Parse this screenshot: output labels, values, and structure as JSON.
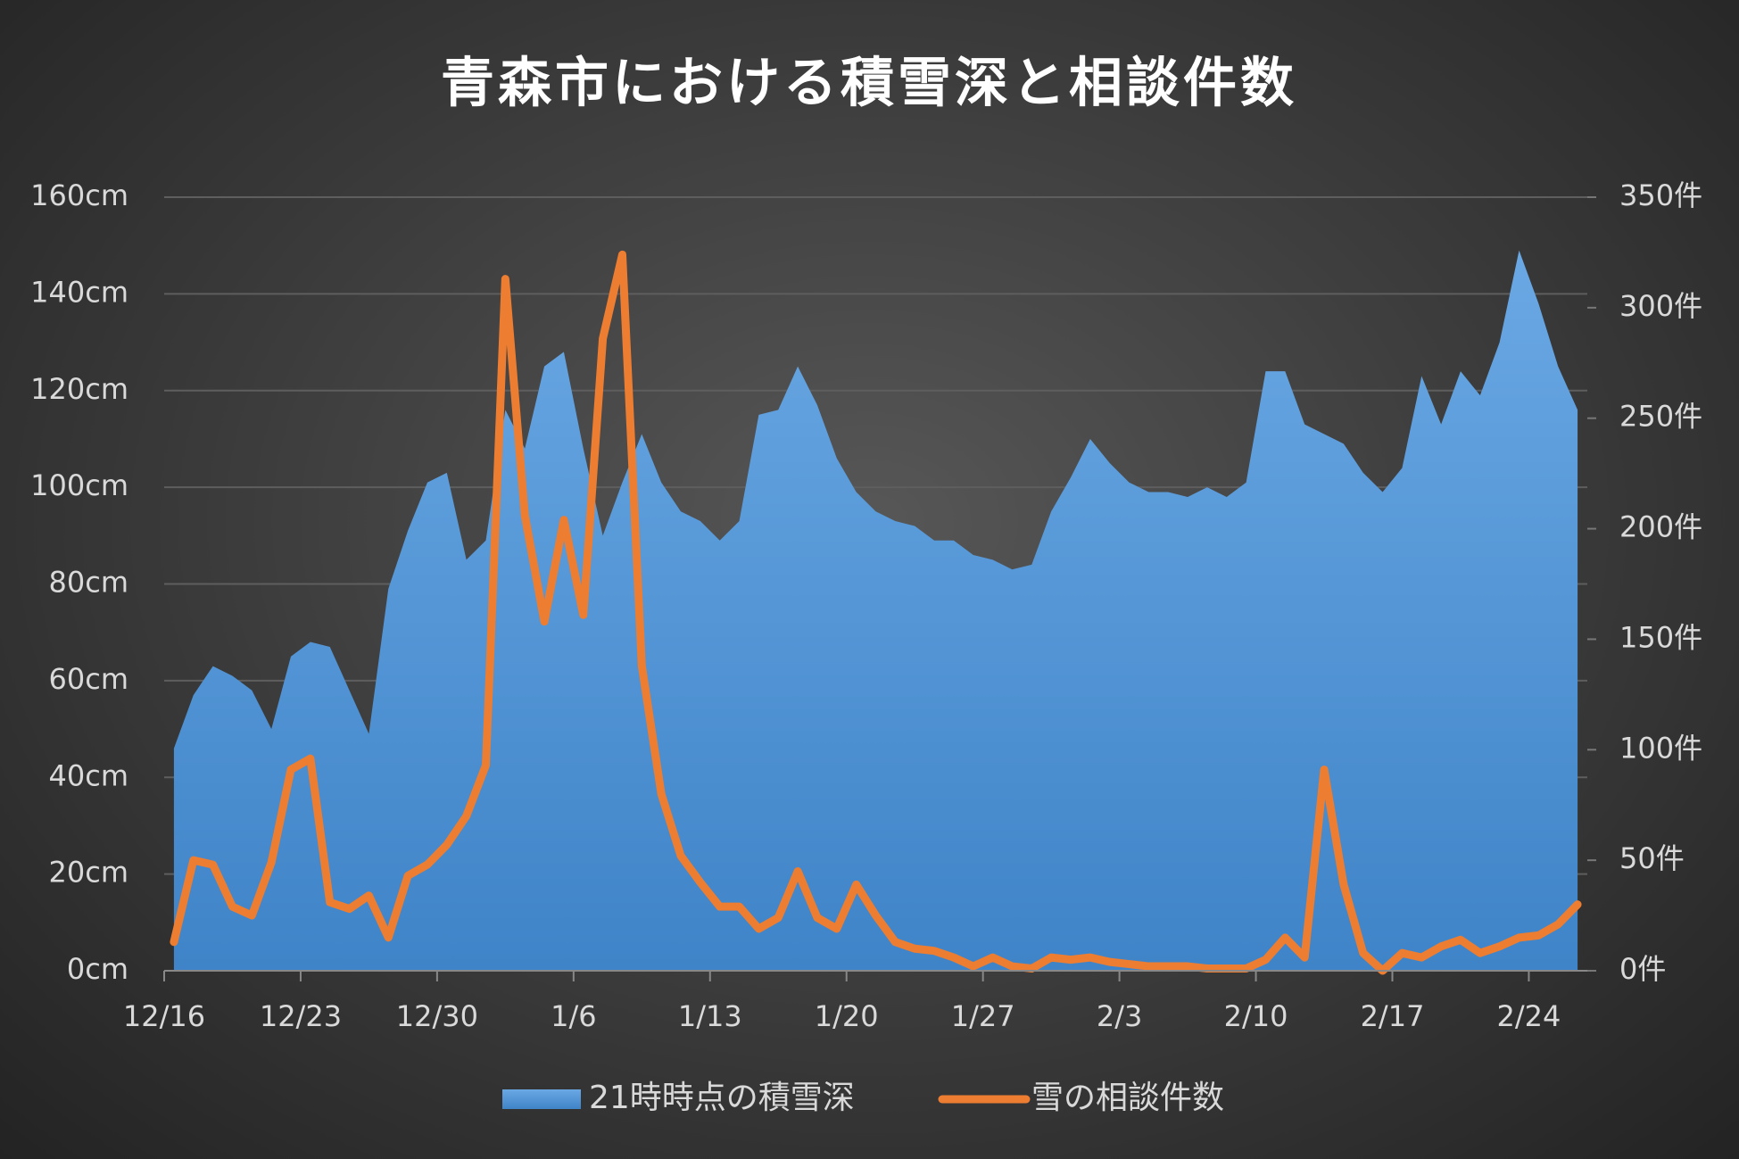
{
  "chart_data": {
    "type": "combo",
    "title": "青森市における積雪深と相談件数",
    "categories": [
      "12/16",
      null,
      null,
      null,
      null,
      null,
      null,
      "12/23",
      null,
      null,
      null,
      null,
      null,
      null,
      "12/30",
      null,
      null,
      null,
      null,
      null,
      null,
      "1/6",
      null,
      null,
      null,
      null,
      null,
      null,
      "1/13",
      null,
      null,
      null,
      null,
      null,
      null,
      "1/20",
      null,
      null,
      null,
      null,
      null,
      null,
      "1/27",
      null,
      null,
      null,
      null,
      null,
      null,
      "2/3",
      null,
      null,
      null,
      null,
      null,
      null,
      "2/10",
      null,
      null,
      null,
      null,
      null,
      null,
      "2/17",
      null,
      null,
      null,
      null,
      null,
      null,
      "2/24",
      null,
      null
    ],
    "series": [
      {
        "name": "21時時点の積雪深",
        "type": "area",
        "color": "#5b9bd5",
        "values": [
          46,
          57,
          63,
          61,
          58,
          50,
          65,
          68,
          67,
          58,
          49,
          79,
          91,
          101,
          103,
          85,
          89,
          116,
          108,
          125,
          128,
          108,
          90,
          101,
          111,
          101,
          95,
          93,
          89,
          93,
          115,
          116,
          125,
          117,
          106,
          99,
          95,
          93,
          92,
          89,
          89,
          86,
          85,
          83,
          84,
          95,
          102,
          110,
          105,
          101,
          99,
          99,
          98,
          100,
          98,
          101,
          124,
          124,
          113,
          111,
          109,
          103,
          99,
          104,
          123,
          113,
          124,
          119,
          130,
          149,
          138,
          125,
          116
        ]
      },
      {
        "name": "雪の相談件数",
        "type": "line",
        "axis": "y2",
        "color": "#ed7d31",
        "values": [
          13,
          50,
          48,
          29,
          25,
          49,
          91,
          96,
          31,
          28,
          34,
          15,
          43,
          48,
          57,
          70,
          93,
          313,
          206,
          158,
          204,
          161,
          286,
          324,
          138,
          80,
          52,
          40,
          29,
          29,
          19,
          24,
          45,
          24,
          19,
          39,
          25,
          13,
          10,
          9,
          6,
          2,
          6,
          2,
          1,
          6,
          5,
          6,
          4,
          3,
          2,
          2,
          2,
          1,
          1,
          1,
          5,
          15,
          6,
          91,
          39,
          8,
          0,
          8,
          6,
          11,
          14,
          8,
          11,
          15,
          16,
          21,
          30
        ]
      }
    ],
    "ylim": [
      0,
      160
    ],
    "yticks": [
      {
        "value": 0,
        "label": "0cm"
      },
      {
        "value": 20,
        "label": "20cm"
      },
      {
        "value": 40,
        "label": "40cm"
      },
      {
        "value": 60,
        "label": "60cm"
      },
      {
        "value": 80,
        "label": "80cm"
      },
      {
        "value": 100,
        "label": "100cm"
      },
      {
        "value": 120,
        "label": "120cm"
      },
      {
        "value": 140,
        "label": "140cm"
      },
      {
        "value": 160,
        "label": "160cm"
      }
    ],
    "y2lim": [
      0,
      350
    ],
    "y2ticks": [
      {
        "value": 0,
        "label": "0件"
      },
      {
        "value": 50,
        "label": "50件"
      },
      {
        "value": 100,
        "label": "100件"
      },
      {
        "value": 150,
        "label": "150件"
      },
      {
        "value": 200,
        "label": "200件"
      },
      {
        "value": 250,
        "label": "250件"
      },
      {
        "value": 300,
        "label": "300件"
      },
      {
        "value": 350,
        "label": "350件"
      }
    ],
    "grid": true,
    "legend": "bottom"
  }
}
